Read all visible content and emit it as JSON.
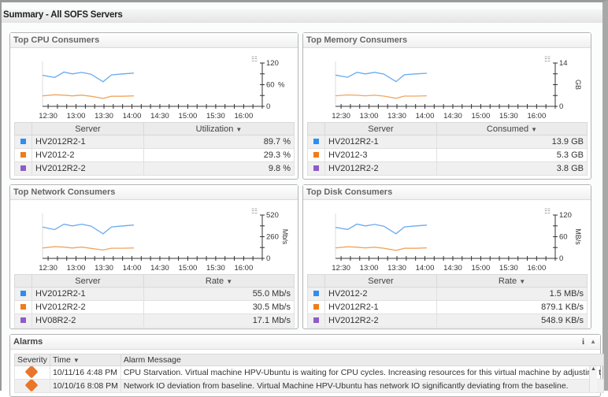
{
  "page_title": "Summary - All SOFS Servers",
  "colors": {
    "series1": "#2f8ef0",
    "series2": "#ef7d1a",
    "series3": "#8e5cc8",
    "line1": "#6aaaf0",
    "line2": "#f0a660"
  },
  "panels": [
    {
      "title": "Top CPU Consumers",
      "menu_icon": "chart-options-icon",
      "col_server": "Server",
      "col_value": "Utilization",
      "rows": [
        {
          "server": "HV2012R2-1",
          "value": "89.7 %"
        },
        {
          "server": "HV2012-2",
          "value": "29.3 %"
        },
        {
          "server": "HV2012R2-2",
          "value": "9.8 %"
        }
      ]
    },
    {
      "title": "Top Memory Consumers",
      "menu_icon": "chart-options-icon",
      "col_server": "Server",
      "col_value": "Consumed",
      "rows": [
        {
          "server": "HV2012R2-1",
          "value": "13.9 GB"
        },
        {
          "server": "HV2012-3",
          "value": "5.3 GB"
        },
        {
          "server": "HV2012R2-2",
          "value": "3.8 GB"
        }
      ]
    },
    {
      "title": "Top Network Consumers",
      "menu_icon": "chart-options-icon",
      "col_server": "Server",
      "col_value": "Rate",
      "rows": [
        {
          "server": "HV2012R2-1",
          "value": "55.0 Mb/s"
        },
        {
          "server": "HV2012R2-2",
          "value": "30.5 Mb/s"
        },
        {
          "server": "HV08R2-2",
          "value": "17.1 Mb/s"
        }
      ]
    },
    {
      "title": "Top Disk Consumers",
      "menu_icon": "chart-options-icon",
      "col_server": "Server",
      "col_value": "Rate",
      "rows": [
        {
          "server": "HV2012-2",
          "value": "1.5 MB/s"
        },
        {
          "server": "HV2012R2-1",
          "value": "879.1 KB/s"
        },
        {
          "server": "HV2012R2-2",
          "value": "548.9 KB/s"
        }
      ]
    }
  ],
  "chart_data": [
    {
      "type": "line",
      "title": "Top CPU Consumers",
      "ylabel": "%",
      "ylim": [
        0,
        120
      ],
      "yticks": [
        "0",
        "60",
        "120"
      ],
      "ylabel_rotated": false,
      "xlim": [
        "12:24",
        "16:20"
      ],
      "xticks": [
        "12:30",
        "13:00",
        "13:30",
        "14:00",
        "14:30",
        "15:00",
        "15:30",
        "16:00"
      ],
      "x": [
        "12:24",
        "12:37",
        "12:47",
        "12:56",
        "13:06",
        "13:16",
        "13:29",
        "13:38",
        "13:50",
        "14:02"
      ],
      "series": [
        {
          "values": [
            86,
            80,
            95,
            90,
            94,
            89,
            68,
            87,
            90,
            92
          ]
        },
        {
          "values": [
            29,
            32,
            31,
            29,
            31,
            28,
            22,
            28,
            28,
            29
          ]
        }
      ]
    },
    {
      "type": "line",
      "title": "Top Memory Consumers",
      "ylabel": "GB",
      "ylim": [
        0,
        14
      ],
      "yticks": [
        "0",
        "14"
      ],
      "ylabel_rotated": true,
      "xlim": [
        "12:24",
        "16:20"
      ],
      "xticks": [
        "12:30",
        "13:00",
        "13:30",
        "14:00",
        "14:30",
        "15:00",
        "15:30",
        "16:00"
      ],
      "x": [
        "12:24",
        "12:37",
        "12:47",
        "12:56",
        "13:06",
        "13:16",
        "13:29",
        "13:38",
        "13:50",
        "14:02"
      ],
      "series": [
        {
          "values": [
            10.1,
            9.4,
            11,
            10.5,
            11,
            10.4,
            8,
            10.2,
            10.5,
            10.7
          ]
        },
        {
          "values": [
            3.4,
            3.7,
            3.6,
            3.4,
            3.6,
            3.3,
            2.6,
            3.3,
            3.3,
            3.4
          ]
        }
      ]
    },
    {
      "type": "line",
      "title": "Top Network Consumers",
      "ylabel": "Mb/s",
      "ylim": [
        0,
        520
      ],
      "yticks": [
        "0",
        "260",
        "520"
      ],
      "ylabel_rotated": true,
      "xlim": [
        "12:24",
        "16:20"
      ],
      "xticks": [
        "12:30",
        "13:00",
        "13:30",
        "14:00",
        "14:30",
        "15:00",
        "15:30",
        "16:00"
      ],
      "x": [
        "12:24",
        "12:37",
        "12:47",
        "12:56",
        "13:06",
        "13:16",
        "13:29",
        "13:38",
        "13:50",
        "14:02"
      ],
      "series": [
        {
          "values": [
            375,
            345,
            410,
            390,
            410,
            388,
            295,
            377,
            390,
            400
          ]
        },
        {
          "values": [
            125,
            140,
            135,
            125,
            135,
            120,
            100,
            122,
            122,
            125
          ]
        }
      ]
    },
    {
      "type": "line",
      "title": "Top Disk Consumers",
      "ylabel": "MB/s",
      "ylim": [
        0,
        120
      ],
      "yticks": [
        "0",
        "60",
        "120"
      ],
      "ylabel_rotated": true,
      "xlim": [
        "12:24",
        "16:20"
      ],
      "xticks": [
        "12:30",
        "13:00",
        "13:30",
        "14:00",
        "14:30",
        "15:00",
        "15:30",
        "16:00"
      ],
      "x": [
        "12:24",
        "12:37",
        "12:47",
        "12:56",
        "13:06",
        "13:16",
        "13:29",
        "13:38",
        "13:50",
        "14:02"
      ],
      "series": [
        {
          "values": [
            86,
            80,
            95,
            90,
            94,
            89,
            68,
            87,
            90,
            92
          ]
        },
        {
          "values": [
            29,
            32,
            31,
            29,
            31,
            28,
            22,
            28,
            28,
            29
          ]
        }
      ]
    }
  ],
  "alarms": {
    "title": "Alarms",
    "info_icon": "i",
    "collapse_icon": "▲",
    "columns": {
      "severity": "Severity",
      "time": "Time",
      "message": "Alarm Message"
    },
    "rows": [
      {
        "severity": "warning",
        "time": "10/11/16 4:48 PM",
        "message": "CPU Starvation. Virtual machine HPV-Ubuntu is waiting for CPU cycles. Increasing resources for this virtual machine by adjusting t"
      },
      {
        "severity": "warning",
        "time": "10/10/16 8:08 PM",
        "message": "Network IO deviation from baseline. Virtual Machine HPV-Ubuntu has network IO significantly deviating from the baseline."
      }
    ]
  }
}
